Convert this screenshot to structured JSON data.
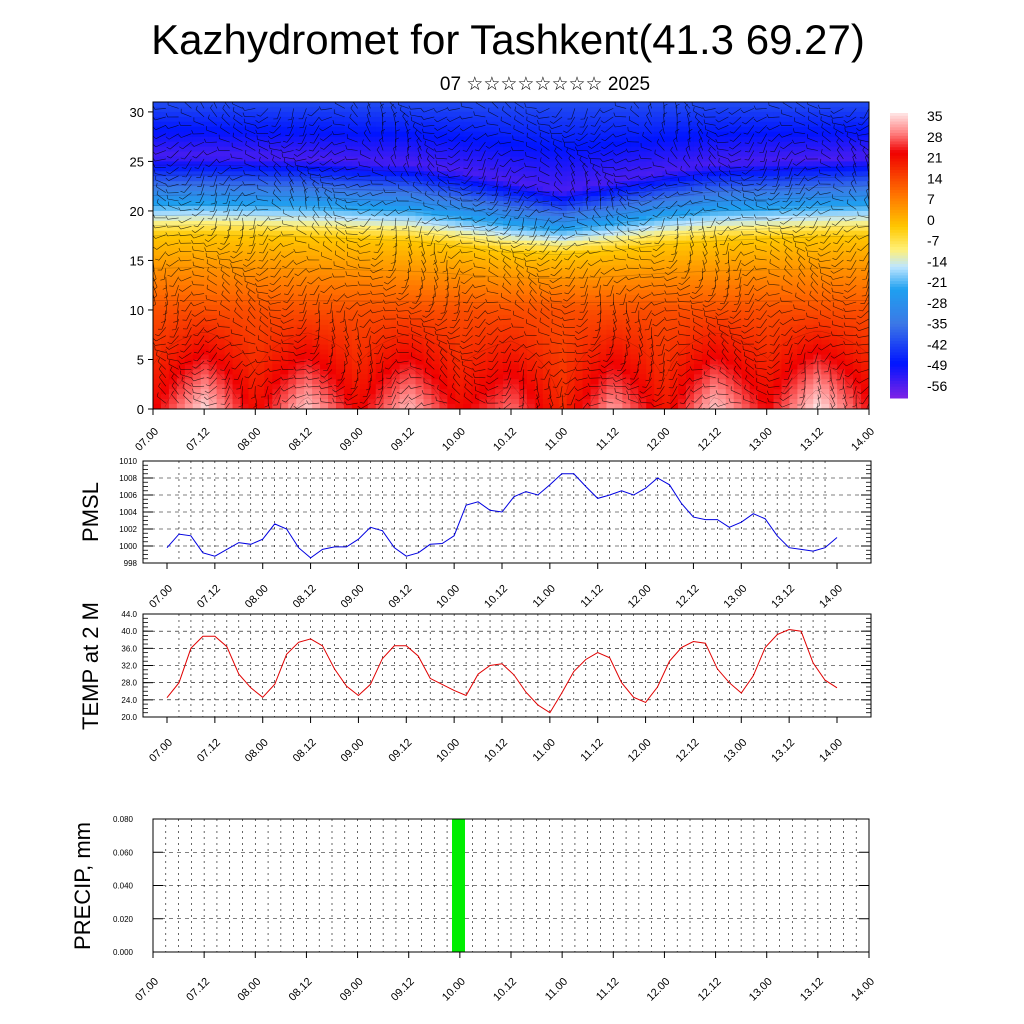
{
  "title": "Kazhydromet for Tashkent(41.3 69.27)",
  "subtitle": "07 ☆☆☆☆☆☆☆☆ 2025",
  "time_labels": [
    "07.00",
    "07.12",
    "08.00",
    "08.12",
    "09.00",
    "09.12",
    "10.00",
    "10.12",
    "11.00",
    "11.12",
    "12.00",
    "12.12",
    "13.00",
    "13.12",
    "14.00"
  ],
  "colors": {
    "pmsl_line": "#0000e0",
    "temp_line": "#e00000",
    "precip_bar": "#00ee00",
    "cross_section_palette": [
      "#ffe8e8",
      "#ff0000",
      "#ff7800",
      "#ffd800",
      "#fff070",
      "#bde8ff",
      "#1e9bf0",
      "#0000ff",
      "#7a22e6"
    ]
  },
  "chart_data": [
    {
      "id": "cross_section",
      "type": "heatmap",
      "description": "Vertical cross-section of temperature (shaded) with wind barbs",
      "x": [
        "07.00",
        "07.12",
        "08.00",
        "08.12",
        "09.00",
        "09.12",
        "10.00",
        "10.12",
        "11.00",
        "11.12",
        "12.00",
        "12.12",
        "13.00",
        "13.12",
        "14.00"
      ],
      "y_ticks": [
        0,
        5,
        10,
        15,
        20,
        25,
        30
      ],
      "ylim": [
        0,
        31
      ],
      "colorbar_labels": [
        "35",
        "28",
        "21",
        "14",
        "7",
        "0",
        "-7",
        "-14",
        "-21",
        "-28",
        "-35",
        "-42",
        "-49",
        "-56"
      ],
      "zlim": [
        -60,
        40
      ],
      "surface_temperature": [
        25,
        39,
        24,
        38,
        25,
        37,
        25,
        32,
        21,
        35,
        23,
        38,
        26,
        40,
        27
      ],
      "freezing_level": [
        17.5,
        17.6,
        17.5,
        17.4,
        17.2,
        17.0,
        16.4,
        15.8,
        15.6,
        16.0,
        16.6,
        17.0,
        17.2,
        17.4,
        17.5
      ],
      "coldest_level": [
        25.5,
        25.5,
        25.4,
        25.3,
        25.0,
        24.8,
        24.0,
        23.0,
        22.0,
        23.0,
        24.0,
        24.8,
        25.0,
        25.2,
        25.4
      ]
    },
    {
      "id": "pmsl",
      "type": "line",
      "ylabel": "PMSL",
      "x": [
        "07.00",
        "07.03",
        "07.06",
        "07.09",
        "07.12",
        "07.15",
        "07.18",
        "07.21",
        "08.00",
        "08.03",
        "08.06",
        "08.09",
        "08.12",
        "08.15",
        "08.18",
        "08.21",
        "09.00",
        "09.03",
        "09.06",
        "09.09",
        "09.12",
        "09.15",
        "09.18",
        "09.21",
        "10.00",
        "10.03",
        "10.06",
        "10.09",
        "10.12",
        "10.15",
        "10.18",
        "10.21",
        "11.00",
        "11.03",
        "11.06",
        "11.09",
        "11.12",
        "11.15",
        "11.18",
        "11.21",
        "12.00",
        "12.03",
        "12.06",
        "12.09",
        "12.12",
        "12.15",
        "12.18",
        "12.21",
        "13.00",
        "13.03",
        "13.06",
        "13.09",
        "13.12",
        "13.15",
        "13.18",
        "13.21",
        "14.00"
      ],
      "values": [
        999.8,
        1001.4,
        1001.2,
        999.2,
        998.8,
        999.6,
        1000.4,
        1000.2,
        1000.8,
        1002.6,
        1002.0,
        999.8,
        998.6,
        999.6,
        999.9,
        999.9,
        1000.8,
        1002.2,
        1001.8,
        999.8,
        998.8,
        999.2,
        1000.2,
        1000.3,
        1001.2,
        1004.8,
        1005.2,
        1004.2,
        1004.0,
        1005.8,
        1006.4,
        1006.0,
        1007.2,
        1008.5,
        1008.5,
        1007.0,
        1005.6,
        1006.0,
        1006.5,
        1006.0,
        1006.8,
        1008.0,
        1007.2,
        1005.0,
        1003.4,
        1003.1,
        1003.1,
        1002.2,
        1002.8,
        1003.8,
        1003.2,
        1001.2,
        999.8,
        999.6,
        999.4,
        999.8,
        1001.0
      ],
      "yticks": [
        "1010",
        "1008",
        "1006",
        "1004",
        "1002",
        "1000",
        "998"
      ],
      "ylim": [
        998,
        1010
      ]
    },
    {
      "id": "temp2m",
      "type": "line",
      "ylabel": "TEMP at 2 M",
      "x": [
        "07.00",
        "07.03",
        "07.06",
        "07.09",
        "07.12",
        "07.15",
        "07.18",
        "07.21",
        "08.00",
        "08.03",
        "08.06",
        "08.09",
        "08.12",
        "08.15",
        "08.18",
        "08.21",
        "09.00",
        "09.03",
        "09.06",
        "09.09",
        "09.12",
        "09.15",
        "09.18",
        "09.21",
        "10.00",
        "10.03",
        "10.06",
        "10.09",
        "10.12",
        "10.15",
        "10.18",
        "10.21",
        "11.00",
        "11.03",
        "11.06",
        "11.09",
        "11.12",
        "11.15",
        "11.18",
        "11.21",
        "12.00",
        "12.03",
        "12.06",
        "12.09",
        "12.12",
        "12.15",
        "12.18",
        "12.21",
        "13.00",
        "13.03",
        "13.06",
        "13.09",
        "13.12",
        "13.15",
        "13.18",
        "13.21",
        "14.00"
      ],
      "values": [
        24.5,
        28.0,
        36.0,
        38.8,
        38.8,
        36.4,
        30.0,
        26.8,
        24.6,
        27.6,
        34.6,
        37.4,
        38.2,
        36.6,
        31.2,
        27.2,
        25.0,
        27.6,
        33.6,
        36.6,
        36.6,
        34.2,
        29.0,
        27.6,
        26.2,
        25.0,
        30.0,
        32.0,
        32.4,
        29.8,
        25.8,
        22.8,
        21.0,
        25.6,
        30.6,
        33.4,
        35.0,
        33.8,
        28.0,
        24.6,
        23.4,
        27.0,
        33.0,
        36.2,
        37.6,
        37.2,
        31.2,
        28.0,
        25.6,
        29.6,
        36.2,
        39.2,
        40.4,
        40.0,
        32.6,
        28.6,
        26.8
      ],
      "yticks": [
        "44.0",
        "40.0",
        "36.0",
        "32.0",
        "28.0",
        "24.0",
        "20.0"
      ],
      "ylim": [
        20,
        44
      ]
    },
    {
      "id": "precip",
      "type": "bar",
      "ylabel": "PRECIP, mm",
      "x": [
        "09.21"
      ],
      "values": [
        0.08
      ],
      "yticks": [
        "0.080",
        "0.060",
        "0.040",
        "0.020",
        "0.000"
      ],
      "ylim": [
        0,
        0.08
      ]
    }
  ]
}
